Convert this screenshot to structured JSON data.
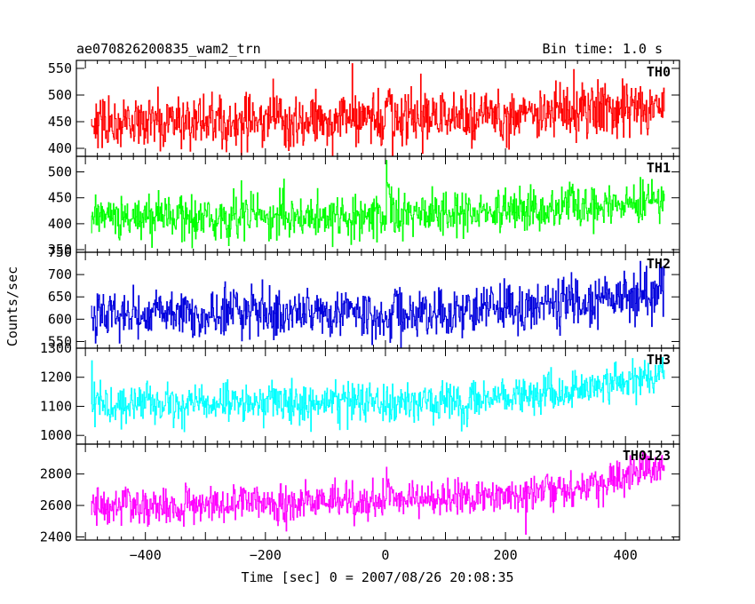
{
  "title_left": "ae070826200835_wam2_trn",
  "title_right": "Bin time: 1.0 s",
  "ylabel": "Counts/sec",
  "xlabel": "Time [sec] 0 = 2007/08/26 20:08:35",
  "chart_data": {
    "type": "line",
    "xlim": [
      -515,
      490
    ],
    "x_range": [
      -490,
      465
    ],
    "bin_time": 1.0,
    "x_ticks": [
      -400,
      -200,
      0,
      200,
      400
    ],
    "x_tick_labels": [
      "−400",
      "−200",
      "0",
      "200",
      "400"
    ],
    "panels": [
      {
        "name": "TH0",
        "color": "#ff0000",
        "ylim": [
          385,
          565
        ],
        "y_ticks": [
          400,
          450,
          500,
          550
        ],
        "trend": [
          [
            -490,
            452
          ],
          [
            0,
            450
          ],
          [
            100,
            455
          ],
          [
            300,
            470
          ],
          [
            465,
            485
          ]
        ],
        "noise_sd": 26,
        "spike": {
          "x": 2,
          "peak": 575,
          "decay": 5
        }
      },
      {
        "name": "TH1",
        "color": "#00ff00",
        "ylim": [
          345,
          530
        ],
        "y_ticks": [
          350,
          400,
          450,
          500
        ],
        "trend": [
          [
            -490,
            412
          ],
          [
            0,
            415
          ],
          [
            100,
            420
          ],
          [
            300,
            430
          ],
          [
            465,
            445
          ]
        ],
        "noise_sd": 21,
        "spike": {
          "x": 2,
          "peak": 530,
          "decay": 5
        }
      },
      {
        "name": "TH2",
        "color": "#0000dd",
        "ylim": [
          535,
          750
        ],
        "y_ticks": [
          550,
          600,
          650,
          700,
          750
        ],
        "trend": [
          [
            -490,
            610
          ],
          [
            0,
            612
          ],
          [
            100,
            618
          ],
          [
            300,
            635
          ],
          [
            465,
            655
          ]
        ],
        "noise_sd": 27,
        "spike": null
      },
      {
        "name": "TH3",
        "color": "#00ffff",
        "ylim": [
          970,
          1300
        ],
        "y_ticks": [
          1000,
          1100,
          1200,
          1300
        ],
        "trend": [
          [
            -490,
            1110
          ],
          [
            0,
            1110
          ],
          [
            200,
            1130
          ],
          [
            350,
            1165
          ],
          [
            465,
            1215
          ]
        ],
        "noise_sd": 33,
        "spike": null
      },
      {
        "name": "TH0123",
        "color": "#ff00ff",
        "ylim": [
          2380,
          2990
        ],
        "y_ticks": [
          2400,
          2600,
          2800
        ],
        "trend": [
          [
            -490,
            2590
          ],
          [
            0,
            2620
          ],
          [
            200,
            2665
          ],
          [
            350,
            2735
          ],
          [
            465,
            2860
          ]
        ],
        "noise_sd": 60,
        "spike": {
          "x": 2,
          "peak": 2940,
          "decay": 5
        }
      }
    ]
  }
}
